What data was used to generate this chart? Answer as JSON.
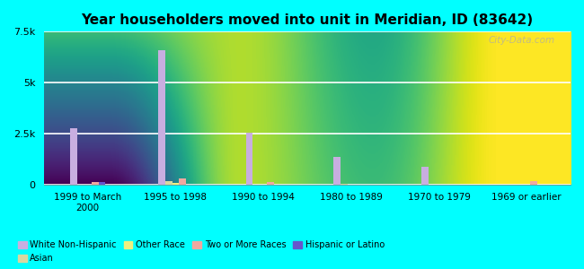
{
  "title": "Year householders moved into unit in Meridian, ID (83642)",
  "categories": [
    "1999 to March\n2000",
    "1995 to 1998",
    "1990 to 1994",
    "1980 to 1989",
    "1970 to 1979",
    "1969 or earlier"
  ],
  "series": {
    "White Non-Hispanic": [
      2750,
      6600,
      2550,
      1350,
      850,
      0
    ],
    "Asian": [
      0,
      150,
      0,
      30,
      0,
      0
    ],
    "Other Race": [
      0,
      80,
      0,
      0,
      0,
      0
    ],
    "Two or More Races": [
      100,
      300,
      100,
      0,
      0,
      180
    ],
    "Hispanic or Latino": [
      100,
      0,
      0,
      0,
      0,
      0
    ]
  },
  "colors": {
    "White Non-Hispanic": "#c8aee0",
    "Asian": "#d8d8a0",
    "Other Race": "#f0f080",
    "Two or More Races": "#f0a8a0",
    "Hispanic or Latino": "#6655cc"
  },
  "ylim": [
    0,
    7500
  ],
  "yticks": [
    0,
    2500,
    5000,
    7500
  ],
  "ytick_labels": [
    "0",
    "2.5k",
    "5k",
    "7.5k"
  ],
  "background_color": "#00ffff",
  "watermark": "City-Data.com",
  "bar_width": 0.08,
  "legend_row1": [
    "White Non-Hispanic",
    "Asian",
    "Other Race",
    "Two or More Races"
  ],
  "legend_row2": [
    "Hispanic or Latino"
  ]
}
